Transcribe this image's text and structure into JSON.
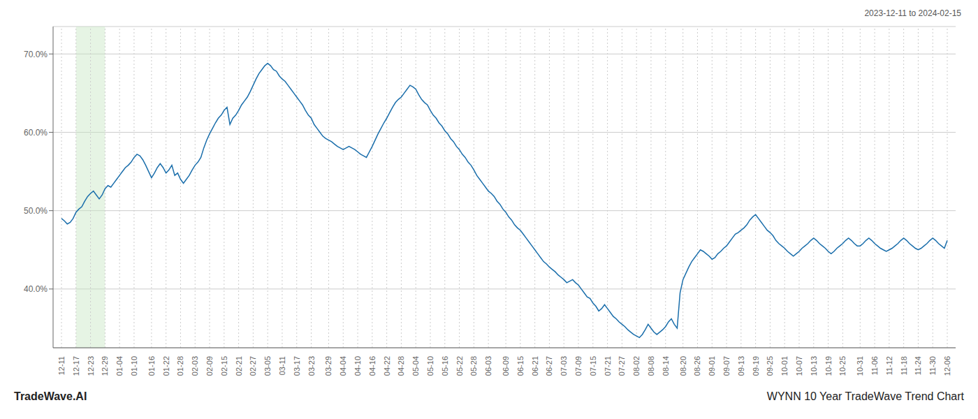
{
  "chart_data": {
    "type": "line",
    "title": "WYNN 10 Year TradeWave Trend Chart",
    "annotations": [
      "2023-12-11 to 2024-02-15",
      "TradeWave.AI"
    ],
    "color": "#1a6eab",
    "grid": true,
    "shaded": {
      "from": "12-17",
      "to": "12-29",
      "color": "#c8e6c4"
    },
    "ylim": [
      0.325,
      0.735
    ],
    "yticks": [
      {
        "value": 0.4,
        "label": "40.0%"
      },
      {
        "value": 0.5,
        "label": "50.0%"
      },
      {
        "value": 0.6,
        "label": "60.0%"
      },
      {
        "value": 0.7,
        "label": "70.0%"
      }
    ],
    "categories": [
      "12-11",
      null,
      null,
      null,
      null,
      "12-17",
      null,
      null,
      null,
      null,
      "12-23",
      null,
      null,
      null,
      null,
      "12-29",
      null,
      null,
      null,
      null,
      "01-04",
      null,
      null,
      null,
      null,
      "01-10",
      null,
      null,
      null,
      null,
      null,
      "01-16",
      null,
      null,
      null,
      null,
      "01-22",
      null,
      null,
      null,
      null,
      "01-28",
      null,
      null,
      null,
      null,
      "02-03",
      null,
      null,
      null,
      null,
      "02-09",
      null,
      null,
      null,
      null,
      "02-15",
      null,
      null,
      null,
      null,
      "02-21",
      null,
      null,
      null,
      null,
      "02-27",
      null,
      null,
      null,
      null,
      "03-05",
      null,
      null,
      null,
      null,
      "03-11",
      null,
      null,
      null,
      null,
      "03-17",
      null,
      null,
      null,
      null,
      "03-23",
      null,
      null,
      null,
      null,
      null,
      "03-29",
      null,
      null,
      null,
      null,
      "04-04",
      null,
      null,
      null,
      null,
      "04-10",
      null,
      null,
      null,
      null,
      "04-16",
      null,
      null,
      null,
      null,
      "04-22",
      null,
      null,
      null,
      null,
      "04-28",
      null,
      null,
      null,
      null,
      "05-04",
      null,
      null,
      null,
      null,
      "05-10",
      null,
      null,
      null,
      null,
      "05-16",
      null,
      null,
      null,
      null,
      "05-22",
      null,
      null,
      null,
      null,
      "05-28",
      null,
      null,
      null,
      null,
      "06-03",
      null,
      null,
      null,
      null,
      null,
      "06-09",
      null,
      null,
      null,
      null,
      "06-15",
      null,
      null,
      null,
      null,
      "06-21",
      null,
      null,
      null,
      null,
      "06-27",
      null,
      null,
      null,
      null,
      "07-03",
      null,
      null,
      null,
      null,
      "07-09",
      null,
      null,
      null,
      null,
      "07-15",
      null,
      null,
      null,
      null,
      "07-21",
      null,
      null,
      null,
      null,
      "07-27",
      null,
      null,
      null,
      null,
      "08-02",
      null,
      null,
      null,
      null,
      "08-08",
      null,
      null,
      null,
      null,
      "08-14",
      null,
      null,
      null,
      null,
      null,
      "08-20",
      null,
      null,
      null,
      null,
      "08-26",
      null,
      null,
      null,
      null,
      "09-01",
      null,
      null,
      null,
      null,
      "09-07",
      null,
      null,
      null,
      null,
      "09-13",
      null,
      null,
      null,
      null,
      "09-19",
      null,
      null,
      null,
      null,
      "09-25",
      null,
      null,
      null,
      null,
      "10-01",
      null,
      null,
      null,
      null,
      "10-07",
      null,
      null,
      null,
      null,
      "10-13",
      null,
      null,
      null,
      null,
      "10-19",
      null,
      null,
      null,
      null,
      "10-25",
      null,
      null,
      null,
      null,
      null,
      "10-31",
      null,
      null,
      null,
      null,
      "11-06",
      null,
      null,
      null,
      null,
      "11-12",
      null,
      null,
      null,
      null,
      "11-18",
      null,
      null,
      null,
      null,
      "11-24",
      null,
      null,
      null,
      null,
      "11-30",
      null,
      null,
      null,
      null,
      "12-06"
    ],
    "values": [
      0.49,
      0.487,
      0.483,
      0.485,
      0.49,
      0.498,
      0.502,
      0.505,
      0.512,
      0.518,
      0.522,
      0.525,
      0.52,
      0.515,
      0.52,
      0.528,
      0.532,
      0.53,
      0.535,
      0.54,
      0.545,
      0.55,
      0.555,
      0.558,
      0.562,
      0.568,
      0.572,
      0.57,
      0.565,
      0.558,
      0.55,
      0.542,
      0.548,
      0.555,
      0.56,
      0.555,
      0.548,
      0.552,
      0.558,
      0.545,
      0.548,
      0.54,
      0.535,
      0.54,
      0.545,
      0.552,
      0.558,
      0.562,
      0.568,
      0.58,
      0.59,
      0.598,
      0.605,
      0.612,
      0.618,
      0.622,
      0.628,
      0.632,
      0.61,
      0.618,
      0.622,
      0.628,
      0.635,
      0.64,
      0.645,
      0.652,
      0.66,
      0.668,
      0.675,
      0.68,
      0.685,
      0.688,
      0.685,
      0.68,
      0.678,
      0.672,
      0.668,
      0.665,
      0.66,
      0.655,
      0.65,
      0.645,
      0.64,
      0.635,
      0.628,
      0.622,
      0.618,
      0.61,
      0.605,
      0.6,
      0.595,
      0.592,
      0.59,
      0.588,
      0.585,
      0.582,
      0.58,
      0.578,
      0.58,
      0.582,
      0.58,
      0.578,
      0.575,
      0.572,
      0.57,
      0.568,
      0.575,
      0.582,
      0.59,
      0.598,
      0.605,
      0.612,
      0.618,
      0.625,
      0.632,
      0.638,
      0.642,
      0.645,
      0.65,
      0.655,
      0.66,
      0.658,
      0.655,
      0.648,
      0.642,
      0.638,
      0.635,
      0.628,
      0.622,
      0.618,
      0.612,
      0.608,
      0.602,
      0.598,
      0.592,
      0.588,
      0.582,
      0.578,
      0.572,
      0.568,
      0.562,
      0.558,
      0.552,
      0.545,
      0.54,
      0.535,
      0.53,
      0.525,
      0.522,
      0.518,
      0.512,
      0.508,
      0.502,
      0.498,
      0.492,
      0.488,
      0.482,
      0.478,
      0.475,
      0.47,
      0.465,
      0.46,
      0.455,
      0.45,
      0.445,
      0.44,
      0.435,
      0.432,
      0.428,
      0.425,
      0.422,
      0.418,
      0.415,
      0.412,
      0.408,
      0.41,
      0.412,
      0.408,
      0.405,
      0.4,
      0.395,
      0.39,
      0.388,
      0.382,
      0.378,
      0.372,
      0.375,
      0.38,
      0.375,
      0.37,
      0.365,
      0.362,
      0.358,
      0.355,
      0.352,
      0.348,
      0.345,
      0.342,
      0.34,
      0.338,
      0.342,
      0.348,
      0.355,
      0.35,
      0.345,
      0.342,
      0.345,
      0.348,
      0.352,
      0.358,
      0.362,
      0.355,
      0.35,
      0.395,
      0.412,
      0.42,
      0.428,
      0.435,
      0.44,
      0.445,
      0.45,
      0.448,
      0.445,
      0.442,
      0.438,
      0.44,
      0.445,
      0.448,
      0.452,
      0.455,
      0.46,
      0.465,
      0.47,
      0.472,
      0.475,
      0.478,
      0.482,
      0.488,
      0.492,
      0.495,
      0.49,
      0.485,
      0.48,
      0.475,
      0.472,
      0.468,
      0.462,
      0.458,
      0.455,
      0.452,
      0.448,
      0.445,
      0.442,
      0.445,
      0.448,
      0.452,
      0.455,
      0.458,
      0.462,
      0.465,
      0.462,
      0.458,
      0.455,
      0.452,
      0.448,
      0.445,
      0.448,
      0.452,
      0.455,
      0.458,
      0.462,
      0.465,
      0.462,
      0.458,
      0.455,
      0.455,
      0.458,
      0.462,
      0.465,
      0.462,
      0.458,
      0.455,
      0.452,
      0.45,
      0.448,
      0.45,
      0.452,
      0.455,
      0.458,
      0.462,
      0.465,
      0.462,
      0.458,
      0.455,
      0.452,
      0.45,
      0.452,
      0.455,
      0.458,
      0.462,
      0.465,
      0.462,
      0.458,
      0.455,
      0.452,
      0.462
    ]
  }
}
